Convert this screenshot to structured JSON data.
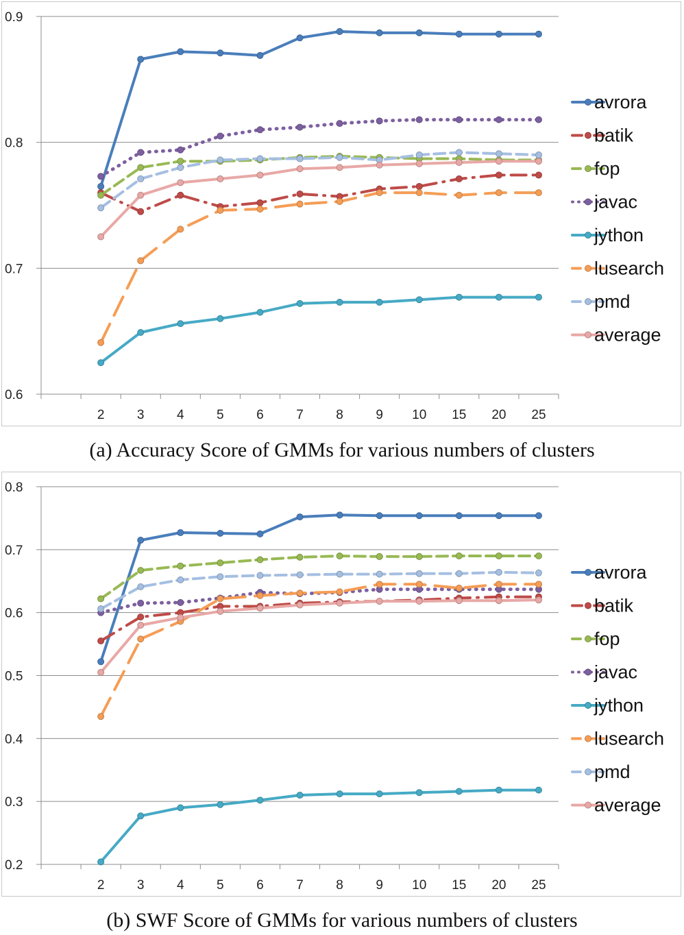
{
  "captions": {
    "a": "(a) Accuracy Score of GMMs for various numbers of clusters",
    "b": "(b) SWF Score of GMMs for various numbers of clusters"
  },
  "chart_data": [
    {
      "type": "line",
      "title": "",
      "xlabel": "",
      "ylabel": "",
      "categories": [
        "2",
        "3",
        "4",
        "5",
        "6",
        "7",
        "8",
        "9",
        "10",
        "15",
        "20",
        "25"
      ],
      "ylim": [
        0.6,
        0.9
      ],
      "yticks": [
        "0.6",
        "0.7",
        "0.8",
        "0.9"
      ],
      "grid": "horizontal",
      "legend": "right",
      "series": [
        {
          "name": "avrora",
          "color": "#4a7ebb",
          "dash": "solid",
          "values": [
            0.765,
            0.866,
            0.872,
            0.871,
            0.869,
            0.883,
            0.888,
            0.887,
            0.887,
            0.886,
            0.886,
            0.886
          ]
        },
        {
          "name": "batik",
          "color": "#be4b48",
          "dash": "dashdot",
          "values": [
            0.76,
            0.745,
            0.758,
            0.749,
            0.752,
            0.759,
            0.757,
            0.763,
            0.765,
            0.771,
            0.774,
            0.774
          ]
        },
        {
          "name": "fop",
          "color": "#98b954",
          "dash": "dash",
          "values": [
            0.758,
            0.78,
            0.785,
            0.785,
            0.786,
            0.788,
            0.789,
            0.788,
            0.787,
            0.787,
            0.786,
            0.786
          ]
        },
        {
          "name": "javac",
          "color": "#7d60a0",
          "dash": "dot",
          "values": [
            0.773,
            0.792,
            0.794,
            0.805,
            0.81,
            0.812,
            0.815,
            0.817,
            0.818,
            0.818,
            0.818,
            0.818
          ]
        },
        {
          "name": "jython",
          "color": "#46aac5",
          "dash": "solid",
          "values": [
            0.625,
            0.649,
            0.656,
            0.66,
            0.665,
            0.672,
            0.673,
            0.673,
            0.675,
            0.677,
            0.677,
            0.677
          ]
        },
        {
          "name": "lusearch",
          "color": "#f59d56",
          "dash": "longdash",
          "values": [
            0.641,
            0.706,
            0.731,
            0.746,
            0.747,
            0.751,
            0.753,
            0.76,
            0.76,
            0.758,
            0.76,
            0.76
          ]
        },
        {
          "name": "pmd",
          "color": "#a5bfe1",
          "dash": "dash",
          "values": [
            0.748,
            0.771,
            0.78,
            0.786,
            0.787,
            0.787,
            0.788,
            0.786,
            0.79,
            0.792,
            0.791,
            0.79
          ]
        },
        {
          "name": "average",
          "color": "#e8a8a6",
          "dash": "solid",
          "values": [
            0.725,
            0.758,
            0.768,
            0.771,
            0.774,
            0.779,
            0.78,
            0.782,
            0.783,
            0.784,
            0.785,
            0.785
          ]
        }
      ]
    },
    {
      "type": "line",
      "title": "",
      "xlabel": "",
      "ylabel": "",
      "categories": [
        "2",
        "3",
        "4",
        "5",
        "6",
        "7",
        "8",
        "9",
        "10",
        "15",
        "20",
        "25"
      ],
      "ylim": [
        0.2,
        0.8
      ],
      "yticks": [
        "0.2",
        "0.3",
        "0.4",
        "0.5",
        "0.6",
        "0.7",
        "0.8"
      ],
      "grid": "horizontal",
      "legend": "right",
      "series": [
        {
          "name": "avrora",
          "color": "#4a7ebb",
          "dash": "solid",
          "values": [
            0.522,
            0.715,
            0.727,
            0.726,
            0.725,
            0.752,
            0.755,
            0.754,
            0.754,
            0.754,
            0.754,
            0.754
          ]
        },
        {
          "name": "batik",
          "color": "#be4b48",
          "dash": "dashdot",
          "values": [
            0.555,
            0.593,
            0.6,
            0.61,
            0.61,
            0.615,
            0.617,
            0.618,
            0.62,
            0.623,
            0.625,
            0.625
          ]
        },
        {
          "name": "fop",
          "color": "#98b954",
          "dash": "dash",
          "values": [
            0.622,
            0.667,
            0.674,
            0.679,
            0.684,
            0.688,
            0.69,
            0.689,
            0.689,
            0.69,
            0.69,
            0.69
          ]
        },
        {
          "name": "javac",
          "color": "#7d60a0",
          "dash": "dot",
          "values": [
            0.6,
            0.615,
            0.616,
            0.623,
            0.632,
            0.63,
            0.632,
            0.637,
            0.637,
            0.637,
            0.637,
            0.637
          ]
        },
        {
          "name": "jython",
          "color": "#46aac5",
          "dash": "solid",
          "values": [
            0.204,
            0.277,
            0.29,
            0.295,
            0.302,
            0.31,
            0.312,
            0.312,
            0.314,
            0.316,
            0.318,
            0.318
          ]
        },
        {
          "name": "lusearch",
          "color": "#f59d56",
          "dash": "longdash",
          "values": [
            0.435,
            0.558,
            0.586,
            0.622,
            0.627,
            0.631,
            0.633,
            0.645,
            0.645,
            0.639,
            0.645,
            0.645
          ]
        },
        {
          "name": "pmd",
          "color": "#a5bfe1",
          "dash": "dash",
          "values": [
            0.606,
            0.641,
            0.652,
            0.657,
            0.659,
            0.66,
            0.661,
            0.661,
            0.662,
            0.662,
            0.664,
            0.663
          ]
        },
        {
          "name": "average",
          "color": "#e8a8a6",
          "dash": "solid",
          "values": [
            0.505,
            0.58,
            0.592,
            0.602,
            0.607,
            0.612,
            0.615,
            0.618,
            0.618,
            0.619,
            0.619,
            0.62
          ]
        }
      ]
    }
  ]
}
